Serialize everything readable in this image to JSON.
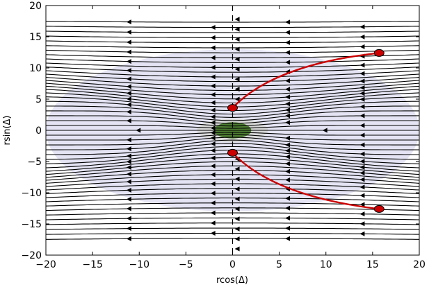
{
  "chart_data": {
    "type": "streamplot",
    "xlabel": "rcos(Δ)",
    "ylabel": "rsin(Δ)",
    "xlim": [
      -20,
      20
    ],
    "ylim": [
      -20,
      20
    ],
    "x_ticks": [
      -20,
      -15,
      -10,
      -5,
      0,
      5,
      10,
      15,
      20
    ],
    "y_ticks": [
      -20,
      -15,
      -10,
      -5,
      0,
      5,
      10,
      15,
      20
    ],
    "flow_direction": "right-to-left",
    "grid": false,
    "regions": [
      {
        "name": "outer region",
        "shape": "ellipse",
        "center": [
          0,
          0
        ],
        "radii": [
          20,
          13
        ],
        "color": "#e4e4f4"
      },
      {
        "name": "inner region",
        "shape": "ellipse",
        "center": [
          0,
          0
        ],
        "radii": [
          3.8,
          1.9
        ],
        "color": "#d9d9d9"
      },
      {
        "name": "core",
        "shape": "ellipse",
        "center": [
          0,
          0
        ],
        "radii": [
          2.0,
          1.3
        ],
        "color": "#4e7f32"
      }
    ],
    "separatrix": {
      "x": 0,
      "style": "dashed"
    },
    "trajectories": [
      {
        "color": "#cc0000",
        "start": [
          0,
          3.6
        ],
        "end": [
          15.7,
          12.4
        ],
        "points": [
          [
            0,
            3.6
          ],
          [
            2.8,
            8.0
          ],
          [
            7.8,
            11.1
          ],
          [
            15.7,
            12.4
          ]
        ]
      },
      {
        "color": "#cc0000",
        "start": [
          0,
          -3.6
        ],
        "end": [
          15.7,
          -12.6
        ],
        "points": [
          [
            0,
            -3.6
          ],
          [
            2.8,
            -8.0
          ],
          [
            7.8,
            -11.2
          ],
          [
            15.7,
            -12.6
          ]
        ]
      }
    ],
    "markers": [
      {
        "x": 0,
        "y": 3.6,
        "color": "#cc0000"
      },
      {
        "x": 0,
        "y": -3.6,
        "color": "#cc0000"
      },
      {
        "x": 15.7,
        "y": 12.4,
        "color": "#cc0000"
      },
      {
        "x": 15.7,
        "y": -12.6,
        "color": "#cc0000"
      }
    ]
  }
}
